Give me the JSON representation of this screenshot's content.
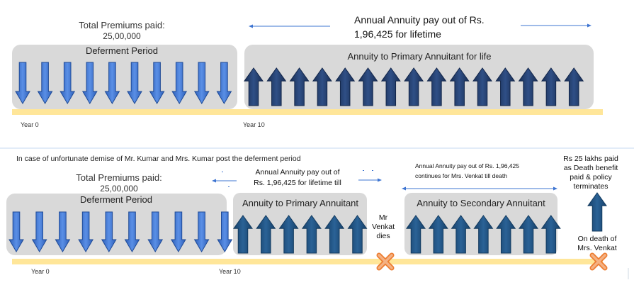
{
  "top": {
    "premiums_label": "Total Premiums paid:",
    "premiums_value": "25,00,000",
    "annuity_line1": "Annual Annuity pay out of Rs.",
    "annuity_line2": "1,96,425 for lifetime",
    "deferment_label": "Deferment Period",
    "primary_life_label": "Annuity to Primary Annuitant for life",
    "year0": "Year 0",
    "year10": "Year 10"
  },
  "bottom": {
    "caption": "In case of unfortunate demise of Mr. Kumar and Mrs. Kumar post the deferment period",
    "premiums_label": "Total Premiums paid:",
    "premiums_value": "25,00,000",
    "annuity_line1": "Annual Annuity pay out of",
    "annuity_line2": "Rs. 1,96,425 for lifetime till",
    "continue_line1": "Annual Annuity pay out of Rs. 1,96,425",
    "continue_line2": "continues for Mrs. Venkat till death",
    "death_line1": "Rs 25 lakhs paid",
    "death_line2": "as Death benefit",
    "death_line3": "paid & policy",
    "death_line4": "terminates",
    "deferment_label": "Deferment Period",
    "primary_label": "Annuity to Primary Annuitant",
    "secondary_label": "Annuity to Secondary Annuitant",
    "mr_line1": "Mr",
    "mr_line2": "Venkat",
    "mr_line3": "dies",
    "ondeath_line1": "On death of",
    "ondeath_line2": "Mrs. Venkat",
    "year0": "Year 0",
    "year10": "Year 10"
  },
  "colors": {
    "down_arrow": "#3d74d1",
    "up_arrow_dark": "#1f3864",
    "up_arrow_mid": "#1f4e79",
    "panel": "#d9d9d9",
    "timeline": "#ffe699",
    "cross": "#f4b183",
    "divider": "#d9e6f5"
  },
  "icons": [
    "arrow-down-icon",
    "arrow-up-icon",
    "cross-icon"
  ]
}
